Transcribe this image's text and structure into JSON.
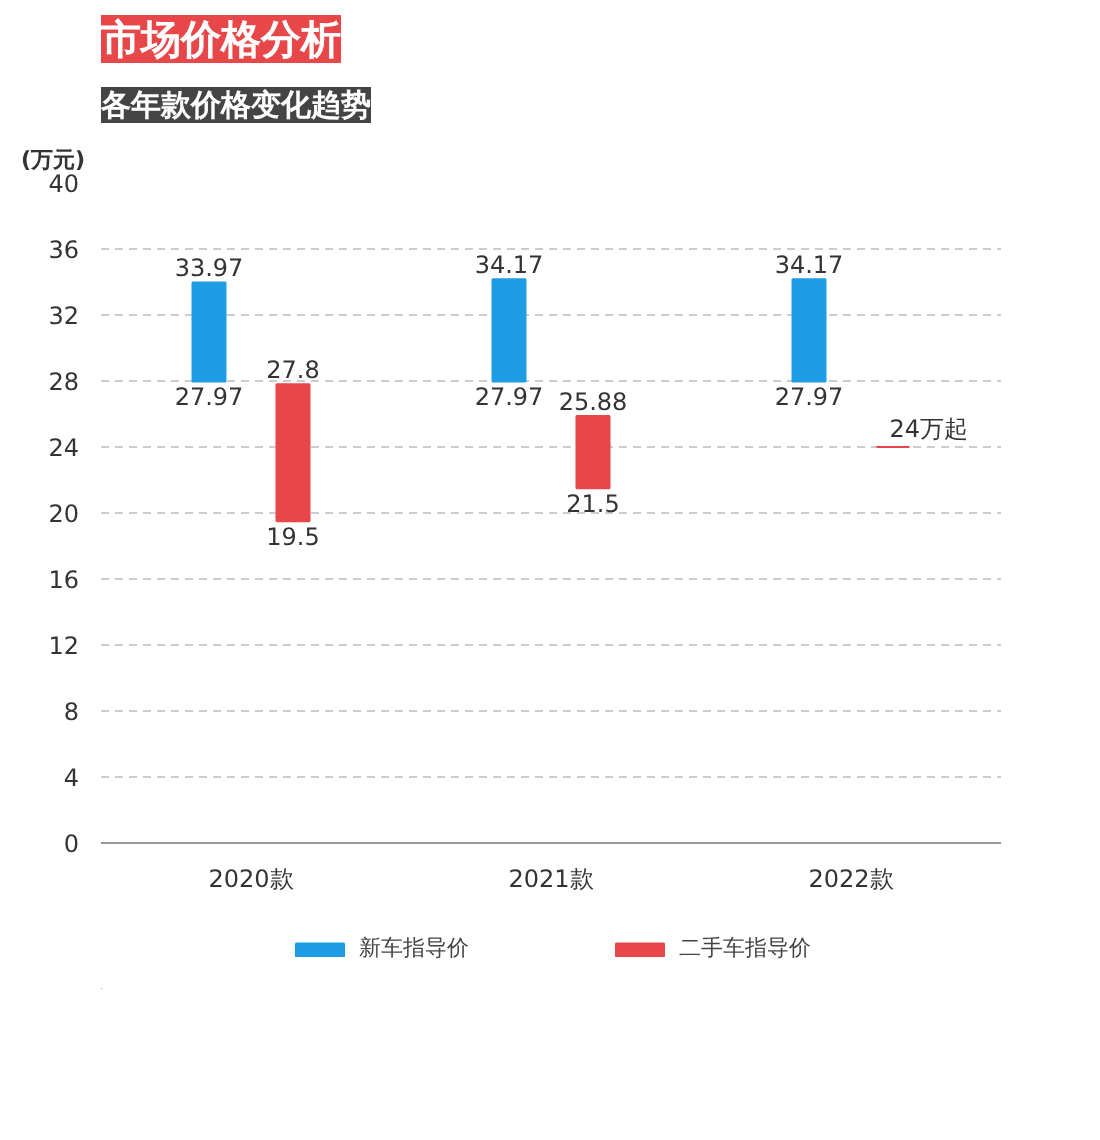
{
  "chart_data": {
    "type": "bar",
    "title": "市场价格分析",
    "subtitle": "各年款价格变化趋势",
    "ylabel": "(万元)",
    "categories": [
      "2020款",
      "2021款",
      "2022款"
    ],
    "series": [
      {
        "name": "新车指导价",
        "color": "#1c9de6",
        "base": [
          27.97,
          27.97,
          27.97
        ],
        "values": [
          6.0,
          6.2,
          6.2
        ]
      },
      {
        "name": "二手车指导价",
        "color": "#e8474a",
        "base": [
          19.5,
          21.5,
          24
        ],
        "values": [
          8.3,
          4.38,
          0
        ]
      }
    ],
    "ylim": [
      0,
      40
    ],
    "yticks": [
      0,
      4,
      8,
      12,
      16,
      20,
      24,
      28,
      32,
      36,
      40
    ],
    "grid": "y",
    "legend": "bottom",
    "annotations": [
      "33.97",
      "27.97",
      "27.8",
      "19.5",
      "34.17",
      "27.97",
      "25.88",
      "21.5",
      "34.17",
      "27.97",
      "24万起"
    ]
  }
}
